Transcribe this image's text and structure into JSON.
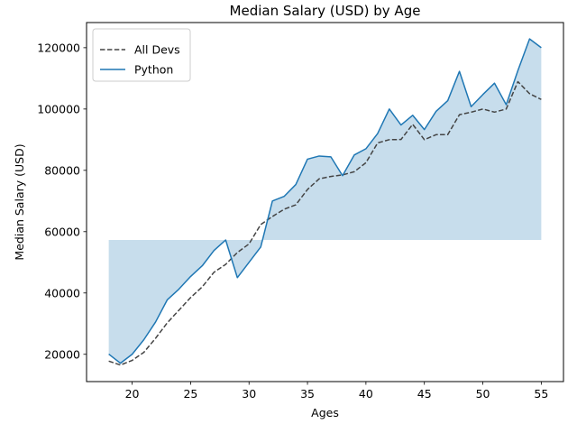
{
  "chart_data": {
    "type": "line",
    "title": "Median Salary (USD) by Age",
    "xlabel": "Ages",
    "ylabel": "Median Salary (USD)",
    "x": [
      18,
      19,
      20,
      21,
      22,
      23,
      24,
      25,
      26,
      27,
      28,
      29,
      30,
      31,
      32,
      33,
      34,
      35,
      36,
      37,
      38,
      39,
      40,
      41,
      42,
      43,
      44,
      45,
      46,
      47,
      48,
      49,
      50,
      51,
      52,
      53,
      54,
      55
    ],
    "xlim": [
      16.1,
      56.9
    ],
    "ylim": [
      11100,
      128200
    ],
    "xticks": [
      20,
      25,
      30,
      35,
      40,
      45,
      50,
      55
    ],
    "yticks": [
      20000,
      40000,
      60000,
      80000,
      100000,
      120000
    ],
    "fill_baseline": 57287,
    "grid": false,
    "legend_position": "top-left",
    "series": [
      {
        "name": "All Devs",
        "style": "dashed",
        "color": "#444444",
        "values": [
          17784,
          16500,
          18012,
          20628,
          25206,
          30252,
          34368,
          38496,
          42000,
          46752,
          49320,
          53200,
          56000,
          62316,
          64928,
          67317,
          68748,
          73752,
          77232,
          78000,
          78508,
          79536,
          82488,
          88935,
          90000,
          90056,
          95000,
          90000,
          91633,
          91660,
          98150,
          98964,
          100000,
          98988,
          100000,
          108923,
          105000,
          103117
        ]
      },
      {
        "name": "Python",
        "style": "solid",
        "color": "#1f77b4",
        "values": [
          20046,
          17100,
          20000,
          24744,
          30500,
          37732,
          41247,
          45372,
          48876,
          53850,
          57287,
          45000,
          50000,
          55000,
          70000,
          71496,
          75370,
          83640,
          84666,
          84392,
          78254,
          85000,
          87038,
          91991,
          100000,
          94796,
          97962,
          93302,
          99240,
          102736,
          112285,
          100771,
          104708,
          108423,
          101407,
          112542,
          122870,
          120000
        ]
      }
    ]
  }
}
